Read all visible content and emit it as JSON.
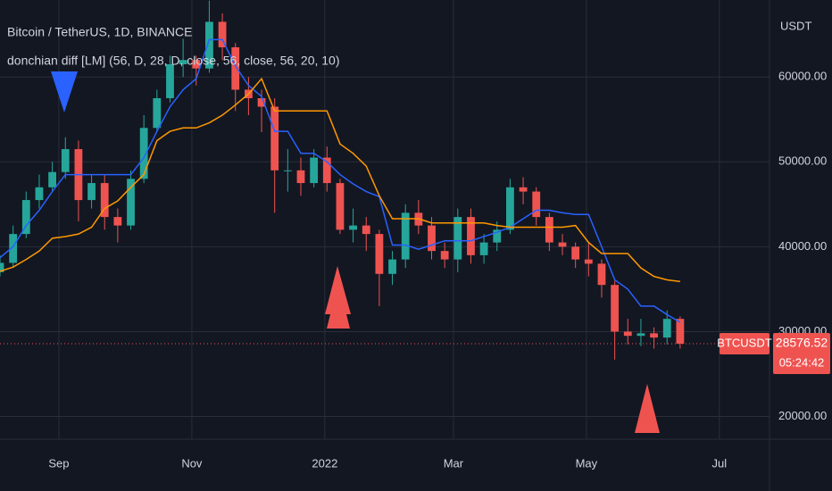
{
  "chart_data": {
    "type": "candlestick",
    "title": "Bitcoin / TetherUS, 1D, BINANCE",
    "subtitle": "donchian diff [LM] (56, D, 28, D, close, 56, close, 56, 20, 10)",
    "currency": "USDT",
    "symbol": "BTCUSDT",
    "last_price": {
      "value": 28576.52,
      "label": "28576.52"
    },
    "countdown": "05:24:42",
    "x": [
      0,
      6,
      12,
      18,
      24,
      30,
      36,
      42,
      48,
      54,
      60,
      66,
      72,
      78,
      84,
      90,
      96,
      102,
      108,
      114,
      120,
      126,
      132,
      138,
      144,
      150,
      156,
      162,
      168,
      174,
      180,
      186,
      192,
      198,
      204,
      210,
      216,
      222,
      228,
      234,
      240,
      246,
      252,
      258,
      264,
      270,
      276,
      282,
      288,
      294,
      300,
      306,
      312
    ],
    "open": [
      37000,
      38100,
      41500,
      45500,
      47000,
      48800,
      51500,
      45500,
      47500,
      43500,
      42500,
      48000,
      54000,
      57500,
      61500,
      62000,
      61000,
      66500,
      63500,
      58500,
      57500,
      56500,
      49000,
      49000,
      47500,
      50500,
      47500,
      42000,
      42500,
      41500,
      36800,
      38500,
      44000,
      42500,
      39500,
      38500,
      43500,
      39000,
      40500,
      42000,
      47000,
      46500,
      43500,
      40500,
      40000,
      38500,
      38000,
      35500,
      30000,
      29500,
      29800,
      29300,
      31500
    ],
    "high": [
      39000,
      42500,
      46500,
      48500,
      50000,
      52900,
      52500,
      48500,
      48500,
      44500,
      49000,
      55500,
      58500,
      62500,
      64500,
      62500,
      69000,
      67500,
      64000,
      60000,
      58500,
      57500,
      51500,
      50500,
      51500,
      51800,
      48000,
      44500,
      43500,
      42000,
      39500,
      45000,
      45500,
      43500,
      40500,
      44500,
      44500,
      41500,
      43000,
      48000,
      48200,
      47000,
      44000,
      41500,
      40500,
      40500,
      38500,
      36000,
      31500,
      31500,
      30500,
      32500,
      31800
    ],
    "low": [
      36500,
      37500,
      41000,
      44500,
      46500,
      48000,
      43000,
      44500,
      42000,
      40500,
      42000,
      47500,
      53500,
      57000,
      60000,
      59000,
      60500,
      62000,
      56000,
      55500,
      53500,
      44000,
      46500,
      46000,
      47000,
      46500,
      41500,
      40500,
      39500,
      33000,
      35500,
      37500,
      41500,
      38500,
      37500,
      37000,
      38000,
      38000,
      39500,
      41500,
      45000,
      42500,
      39500,
      39000,
      37500,
      36500,
      34000,
      26700,
      28500,
      28300,
      28000,
      28500,
      28000
    ],
    "close": [
      38100,
      41500,
      45500,
      47000,
      48800,
      51500,
      45500,
      47500,
      43500,
      42500,
      48000,
      54000,
      57500,
      61500,
      62000,
      61000,
      66500,
      63500,
      58500,
      57500,
      56500,
      49000,
      49000,
      47500,
      50500,
      47500,
      42000,
      42500,
      41500,
      36800,
      38500,
      44000,
      42500,
      39500,
      38500,
      43500,
      39000,
      40500,
      42000,
      47000,
      46500,
      43500,
      40500,
      40000,
      38500,
      38000,
      35500,
      30000,
      29500,
      29800,
      29300,
      31500,
      28576.52
    ],
    "up_color": "#26a69a",
    "down_color": "#ef5350",
    "series": [
      {
        "color": "#2962ff",
        "values": [
          38700,
          40000,
          42500,
          44300,
          46500,
          48500,
          48500,
          48500,
          48500,
          48500,
          48500,
          50500,
          53600,
          56500,
          58500,
          59800,
          64400,
          64400,
          61300,
          59000,
          57700,
          53600,
          53600,
          51000,
          51000,
          50000,
          48500,
          47400,
          46500,
          45900,
          40200,
          40200,
          39700,
          40200,
          40700,
          40700,
          40700,
          41200,
          41700,
          42300,
          43300,
          44300,
          44300,
          44000,
          43800,
          43800,
          40000,
          36100,
          35000,
          33000,
          33000,
          32000,
          31100
        ]
      },
      {
        "color": "#ff9800",
        "values": [
          37100,
          37600,
          38500,
          39500,
          41000,
          41200,
          41500,
          42300,
          44500,
          45400,
          47000,
          48500,
          52500,
          53600,
          54000,
          54000,
          54600,
          55500,
          56700,
          58000,
          59800,
          56000,
          56000,
          56000,
          56000,
          56000,
          52100,
          51000,
          49500,
          46000,
          43300,
          43300,
          43300,
          42800,
          42800,
          42800,
          42800,
          42800,
          42500,
          42300,
          42300,
          42300,
          42300,
          42300,
          42500,
          40500,
          39200,
          39200,
          39200,
          37500,
          36500,
          36100,
          35900
        ]
      }
    ],
    "xlim": [
      0,
      353
    ],
    "xticks": [
      {
        "value": 27,
        "label": "Sep"
      },
      {
        "value": 88,
        "label": "Nov"
      },
      {
        "value": 149,
        "label": "2022"
      },
      {
        "value": 208,
        "label": "Mar"
      },
      {
        "value": 269,
        "label": "May"
      },
      {
        "value": 330,
        "label": "Jul"
      }
    ],
    "ylim": [
      17320,
      69070
    ],
    "yticks": [
      {
        "value": 20000,
        "label": "20000.00"
      },
      {
        "value": 30000,
        "label": "30000.00"
      },
      {
        "value": 40000,
        "label": "40000.00"
      },
      {
        "value": 50000,
        "label": "50000.00"
      },
      {
        "value": 60000,
        "label": "60000.00"
      }
    ],
    "grid": true
  }
}
